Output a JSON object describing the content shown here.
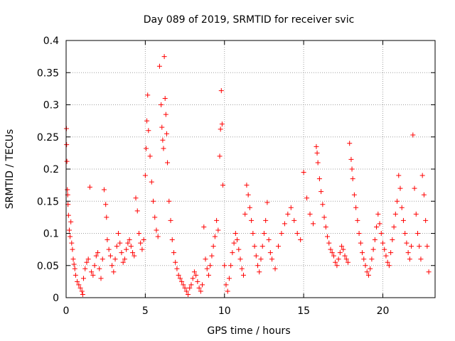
{
  "chart_data": {
    "type": "scatter",
    "title": "Day 089 of 2019, SRMTID for receiver svic",
    "xlabel": "GPS time / hours",
    "ylabel": "SRMTID / TECUs",
    "xlim": [
      0,
      23.3
    ],
    "ylim": [
      0,
      0.4
    ],
    "xticks": [
      0,
      5,
      10,
      15,
      20
    ],
    "xtick_labels": [
      "0",
      "5",
      "10",
      "15",
      "20"
    ],
    "yticks": [
      0,
      0.05,
      0.1,
      0.15,
      0.2,
      0.25,
      0.3,
      0.35,
      0.4
    ],
    "ytick_labels": [
      "0",
      "0.05",
      "0.1",
      "0.15",
      "0.2",
      "0.25",
      "0.3",
      "0.35",
      "0.4"
    ],
    "grid": true,
    "marker": "+",
    "color": "#ff0000",
    "series": [
      {
        "name": "SRMTID",
        "points": [
          [
            0.02,
            0.263
          ],
          [
            0.03,
            0.238
          ],
          [
            0.05,
            0.212
          ],
          [
            0.08,
            0.168
          ],
          [
            0.1,
            0.16
          ],
          [
            0.12,
            0.145
          ],
          [
            0.15,
            0.128
          ],
          [
            0.2,
            0.105
          ],
          [
            0.25,
            0.095
          ],
          [
            0.3,
            0.118
          ],
          [
            0.35,
            0.085
          ],
          [
            0.4,
            0.075
          ],
          [
            0.45,
            0.06
          ],
          [
            0.5,
            0.052
          ],
          [
            0.55,
            0.045
          ],
          [
            0.6,
            0.035
          ],
          [
            0.7,
            0.025
          ],
          [
            0.8,
            0.02
          ],
          [
            0.9,
            0.015
          ],
          [
            1.0,
            0.01
          ],
          [
            1.05,
            0.005
          ],
          [
            1.1,
            0.03
          ],
          [
            1.2,
            0.045
          ],
          [
            1.3,
            0.055
          ],
          [
            1.4,
            0.06
          ],
          [
            1.5,
            0.172
          ],
          [
            1.6,
            0.04
          ],
          [
            1.7,
            0.035
          ],
          [
            1.8,
            0.05
          ],
          [
            1.9,
            0.065
          ],
          [
            2.0,
            0.07
          ],
          [
            2.1,
            0.045
          ],
          [
            2.2,
            0.03
          ],
          [
            2.3,
            0.06
          ],
          [
            2.4,
            0.168
          ],
          [
            2.5,
            0.145
          ],
          [
            2.55,
            0.125
          ],
          [
            2.6,
            0.09
          ],
          [
            2.7,
            0.075
          ],
          [
            2.8,
            0.065
          ],
          [
            2.9,
            0.05
          ],
          [
            3.0,
            0.04
          ],
          [
            3.1,
            0.06
          ],
          [
            3.2,
            0.08
          ],
          [
            3.3,
            0.1
          ],
          [
            3.4,
            0.085
          ],
          [
            3.5,
            0.07
          ],
          [
            3.6,
            0.055
          ],
          [
            3.7,
            0.06
          ],
          [
            3.8,
            0.075
          ],
          [
            3.9,
            0.085
          ],
          [
            4.0,
            0.09
          ],
          [
            4.1,
            0.08
          ],
          [
            4.2,
            0.07
          ],
          [
            4.3,
            0.065
          ],
          [
            4.4,
            0.155
          ],
          [
            4.5,
            0.135
          ],
          [
            4.6,
            0.1
          ],
          [
            4.7,
            0.085
          ],
          [
            4.8,
            0.075
          ],
          [
            4.9,
            0.09
          ],
          [
            5.0,
            0.19
          ],
          [
            5.05,
            0.232
          ],
          [
            5.1,
            0.275
          ],
          [
            5.15,
            0.315
          ],
          [
            5.2,
            0.26
          ],
          [
            5.3,
            0.22
          ],
          [
            5.4,
            0.18
          ],
          [
            5.5,
            0.15
          ],
          [
            5.6,
            0.125
          ],
          [
            5.7,
            0.105
          ],
          [
            5.8,
            0.095
          ],
          [
            5.9,
            0.36
          ],
          [
            6.0,
            0.3
          ],
          [
            6.05,
            0.265
          ],
          [
            6.1,
            0.245
          ],
          [
            6.15,
            0.232
          ],
          [
            6.2,
            0.375
          ],
          [
            6.25,
            0.31
          ],
          [
            6.3,
            0.285
          ],
          [
            6.35,
            0.255
          ],
          [
            6.4,
            0.21
          ],
          [
            6.5,
            0.15
          ],
          [
            6.6,
            0.12
          ],
          [
            6.7,
            0.09
          ],
          [
            6.8,
            0.07
          ],
          [
            6.9,
            0.055
          ],
          [
            7.0,
            0.045
          ],
          [
            7.1,
            0.035
          ],
          [
            7.2,
            0.03
          ],
          [
            7.3,
            0.025
          ],
          [
            7.4,
            0.02
          ],
          [
            7.5,
            0.015
          ],
          [
            7.6,
            0.01
          ],
          [
            7.7,
            0.005
          ],
          [
            7.8,
            0.015
          ],
          [
            7.9,
            0.02
          ],
          [
            8.0,
            0.03
          ],
          [
            8.1,
            0.04
          ],
          [
            8.2,
            0.035
          ],
          [
            8.3,
            0.025
          ],
          [
            8.4,
            0.015
          ],
          [
            8.5,
            0.01
          ],
          [
            8.6,
            0.02
          ],
          [
            8.7,
            0.11
          ],
          [
            8.8,
            0.06
          ],
          [
            8.9,
            0.045
          ],
          [
            9.0,
            0.035
          ],
          [
            9.1,
            0.05
          ],
          [
            9.2,
            0.065
          ],
          [
            9.3,
            0.08
          ],
          [
            9.4,
            0.095
          ],
          [
            9.5,
            0.12
          ],
          [
            9.6,
            0.105
          ],
          [
            9.7,
            0.22
          ],
          [
            9.75,
            0.262
          ],
          [
            9.8,
            0.322
          ],
          [
            9.85,
            0.27
          ],
          [
            9.9,
            0.175
          ],
          [
            10.0,
            0.05
          ],
          [
            10.1,
            0.02
          ],
          [
            10.2,
            0.01
          ],
          [
            10.3,
            0.03
          ],
          [
            10.4,
            0.05
          ],
          [
            10.5,
            0.07
          ],
          [
            10.6,
            0.085
          ],
          [
            10.7,
            0.1
          ],
          [
            10.8,
            0.09
          ],
          [
            10.9,
            0.075
          ],
          [
            11.0,
            0.06
          ],
          [
            11.1,
            0.045
          ],
          [
            11.2,
            0.035
          ],
          [
            11.3,
            0.13
          ],
          [
            11.4,
            0.175
          ],
          [
            11.5,
            0.16
          ],
          [
            11.6,
            0.14
          ],
          [
            11.7,
            0.12
          ],
          [
            11.8,
            0.1
          ],
          [
            11.9,
            0.08
          ],
          [
            12.0,
            0.065
          ],
          [
            12.1,
            0.05
          ],
          [
            12.2,
            0.04
          ],
          [
            12.3,
            0.06
          ],
          [
            12.4,
            0.08
          ],
          [
            12.5,
            0.1
          ],
          [
            12.6,
            0.12
          ],
          [
            12.7,
            0.148
          ],
          [
            12.8,
            0.09
          ],
          [
            12.9,
            0.07
          ],
          [
            13.0,
            0.06
          ],
          [
            13.2,
            0.045
          ],
          [
            13.4,
            0.08
          ],
          [
            13.6,
            0.1
          ],
          [
            13.8,
            0.115
          ],
          [
            14.0,
            0.13
          ],
          [
            14.2,
            0.14
          ],
          [
            14.4,
            0.12
          ],
          [
            14.6,
            0.1
          ],
          [
            14.8,
            0.09
          ],
          [
            15.0,
            0.195
          ],
          [
            15.2,
            0.155
          ],
          [
            15.4,
            0.13
          ],
          [
            15.6,
            0.115
          ],
          [
            15.8,
            0.235
          ],
          [
            15.85,
            0.225
          ],
          [
            15.9,
            0.21
          ],
          [
            16.0,
            0.185
          ],
          [
            16.1,
            0.165
          ],
          [
            16.2,
            0.145
          ],
          [
            16.3,
            0.125
          ],
          [
            16.4,
            0.11
          ],
          [
            16.5,
            0.095
          ],
          [
            16.6,
            0.085
          ],
          [
            16.7,
            0.075
          ],
          [
            16.8,
            0.07
          ],
          [
            16.9,
            0.065
          ],
          [
            17.0,
            0.055
          ],
          [
            17.1,
            0.05
          ],
          [
            17.2,
            0.06
          ],
          [
            17.3,
            0.07
          ],
          [
            17.4,
            0.08
          ],
          [
            17.5,
            0.075
          ],
          [
            17.6,
            0.065
          ],
          [
            17.7,
            0.06
          ],
          [
            17.8,
            0.055
          ],
          [
            17.9,
            0.24
          ],
          [
            18.0,
            0.215
          ],
          [
            18.05,
            0.2
          ],
          [
            18.1,
            0.185
          ],
          [
            18.2,
            0.16
          ],
          [
            18.3,
            0.14
          ],
          [
            18.4,
            0.12
          ],
          [
            18.5,
            0.1
          ],
          [
            18.6,
            0.085
          ],
          [
            18.7,
            0.07
          ],
          [
            18.8,
            0.06
          ],
          [
            18.9,
            0.05
          ],
          [
            19.0,
            0.04
          ],
          [
            19.1,
            0.035
          ],
          [
            19.2,
            0.045
          ],
          [
            19.3,
            0.06
          ],
          [
            19.4,
            0.075
          ],
          [
            19.5,
            0.09
          ],
          [
            19.6,
            0.11
          ],
          [
            19.7,
            0.13
          ],
          [
            19.8,
            0.115
          ],
          [
            19.9,
            0.1
          ],
          [
            20.0,
            0.085
          ],
          [
            20.1,
            0.075
          ],
          [
            20.2,
            0.065
          ],
          [
            20.3,
            0.055
          ],
          [
            20.4,
            0.05
          ],
          [
            20.5,
            0.07
          ],
          [
            20.6,
            0.09
          ],
          [
            20.7,
            0.11
          ],
          [
            20.8,
            0.13
          ],
          [
            20.9,
            0.15
          ],
          [
            21.0,
            0.19
          ],
          [
            21.1,
            0.17
          ],
          [
            21.2,
            0.14
          ],
          [
            21.3,
            0.12
          ],
          [
            21.4,
            0.1
          ],
          [
            21.5,
            0.085
          ],
          [
            21.6,
            0.07
          ],
          [
            21.7,
            0.06
          ],
          [
            21.8,
            0.08
          ],
          [
            21.9,
            0.253
          ],
          [
            22.0,
            0.17
          ],
          [
            22.1,
            0.13
          ],
          [
            22.2,
            0.1
          ],
          [
            22.3,
            0.08
          ],
          [
            22.4,
            0.06
          ],
          [
            22.5,
            0.19
          ],
          [
            22.6,
            0.16
          ],
          [
            22.7,
            0.12
          ],
          [
            22.8,
            0.08
          ],
          [
            22.9,
            0.04
          ]
        ]
      }
    ]
  }
}
